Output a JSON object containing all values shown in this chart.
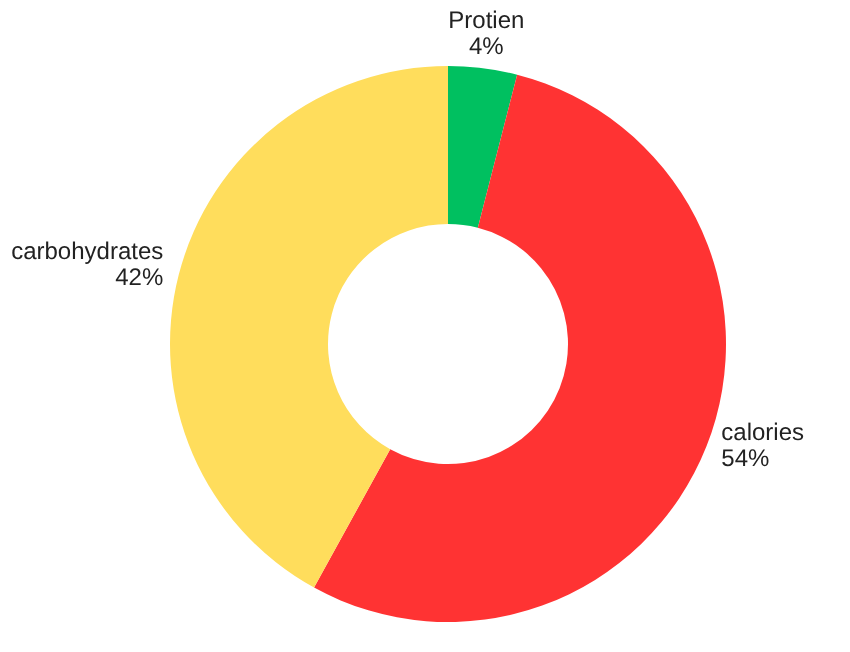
{
  "chart_data": {
    "type": "donut",
    "categories": [
      "Protien",
      "calories",
      "carbohydrates"
    ],
    "values": [
      4,
      54,
      42
    ],
    "value_labels": [
      "4%",
      "54%",
      "42%"
    ],
    "colors": [
      "#00c060",
      "#ff3333",
      "#ffdd5c"
    ]
  }
}
